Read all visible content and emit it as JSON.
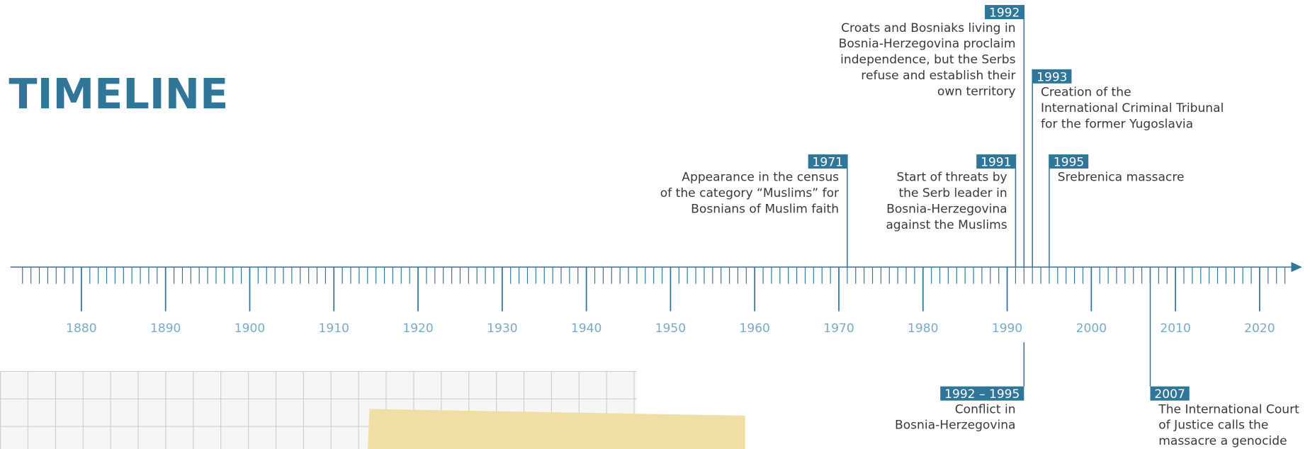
{
  "title": "TIMELINE",
  "axis": {
    "labels": [
      "1880",
      "1890",
      "1900",
      "1910",
      "1920",
      "1930",
      "1940",
      "1950",
      "1960",
      "1970",
      "1980",
      "1990",
      "2000",
      "2010",
      "2020"
    ]
  },
  "events": [
    {
      "year": "1971",
      "lines": [
        "Appearance in the census",
        "of the category “Muslims” for",
        "Bosnians of Muslim faith"
      ]
    },
    {
      "year": "1991",
      "lines": [
        "Start of threats by",
        "the Serb leader in",
        "Bosnia-Herzegovina",
        "against the Muslims"
      ]
    },
    {
      "year": "1992",
      "lines": [
        "Croats and Bosniaks living in",
        "Bosnia-Herzegovina proclaim",
        "independence, but the Serbs",
        "refuse and establish their",
        "own territory"
      ]
    },
    {
      "year": "1993",
      "lines": [
        "Creation of the",
        "International Criminal Tribunal",
        "for the former Yugoslavia"
      ]
    },
    {
      "year": "1995",
      "lines": [
        "Srebrenica massacre"
      ]
    },
    {
      "year": "1992 – 1995",
      "lines": [
        "Conflict in",
        "Bosnia-Herzegovina"
      ]
    },
    {
      "year": "2007",
      "lines": [
        "The International Court",
        "of Justice calls the",
        "massacre a genocide"
      ]
    }
  ]
}
